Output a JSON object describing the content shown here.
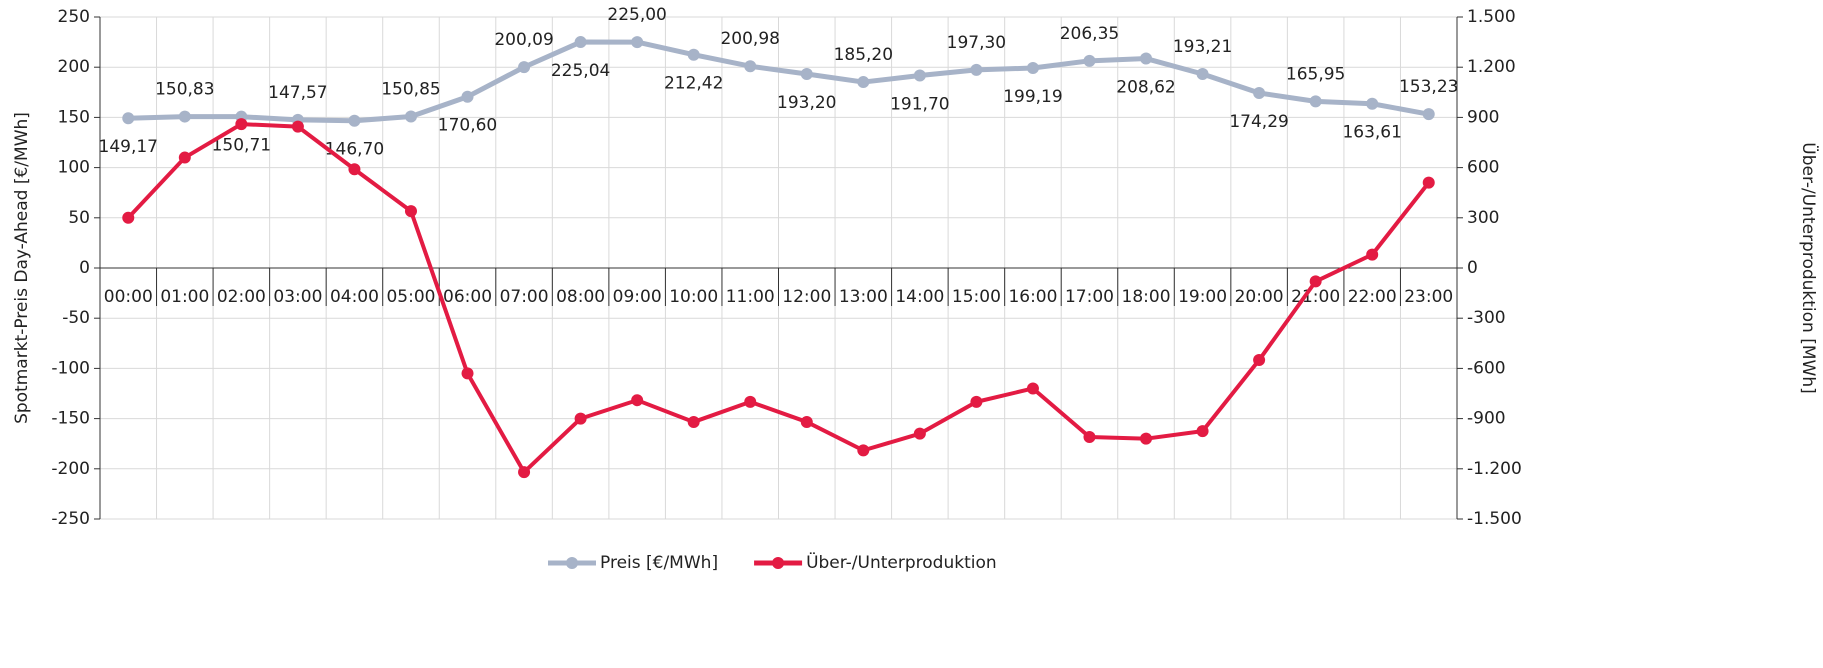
{
  "chart_data": {
    "type": "line",
    "y_label": "Spotmarkt-Preis Day-Ahead [€/MWh]",
    "y2_label": "Über-/Unterproduktion [MWh]",
    "categories": [
      "00:00",
      "01:00",
      "02:00",
      "03:00",
      "04:00",
      "05:00",
      "06:00",
      "07:00",
      "08:00",
      "09:00",
      "10:00",
      "11:00",
      "12:00",
      "13:00",
      "14:00",
      "15:00",
      "16:00",
      "17:00",
      "18:00",
      "19:00",
      "20:00",
      "21:00",
      "22:00",
      "23:00"
    ],
    "series": [
      {
        "name": "Preis [€/MWh]",
        "color": "#a7b3c8",
        "axis": "y",
        "values": [
          149.17,
          150.83,
          150.71,
          147.57,
          146.7,
          150.85,
          170.6,
          200.09,
          225.04,
          225.0,
          212.42,
          200.98,
          193.2,
          185.2,
          191.7,
          197.3,
          199.19,
          206.35,
          208.62,
          193.21,
          174.29,
          165.95,
          163.61,
          153.23
        ],
        "value_labels": [
          "149,17",
          "150,83",
          "150,71",
          "147,57",
          "146,70",
          "150,85",
          "170,60",
          "200,09",
          "225,04",
          "225,00",
          "212,42",
          "200,98",
          "193,20",
          "185,20",
          "191,70",
          "197,30",
          "199,19",
          "206,35",
          "208,62",
          "193,21",
          "174,29",
          "165,95",
          "163,61",
          "153,23"
        ]
      },
      {
        "name": "Über-/Unterproduktion",
        "color": "#e31b43",
        "axis": "y2",
        "values": [
          300,
          660,
          860,
          845,
          590,
          340,
          -630,
          -1220,
          -900,
          -790,
          -920,
          -800,
          -920,
          -1090,
          -990,
          -800,
          -720,
          -1010,
          -1020,
          -975,
          -550,
          -80,
          80,
          510
        ]
      }
    ],
    "ylim": [
      -250,
      250
    ],
    "yticks": [
      250,
      200,
      150,
      100,
      50,
      0,
      -50,
      -100,
      -150,
      -200,
      -250
    ],
    "y2lim": [
      -1500,
      1500
    ],
    "y2ticks": [
      {
        "value": 1500,
        "label": "1.500"
      },
      {
        "value": 1200,
        "label": "1.200"
      },
      900,
      600,
      300,
      0,
      -300,
      -600,
      -900,
      {
        "value": -1200,
        "label": "-1.200"
      },
      {
        "value": -1500,
        "label": "-1.500"
      }
    ],
    "grid": true,
    "legend": "bottom"
  }
}
